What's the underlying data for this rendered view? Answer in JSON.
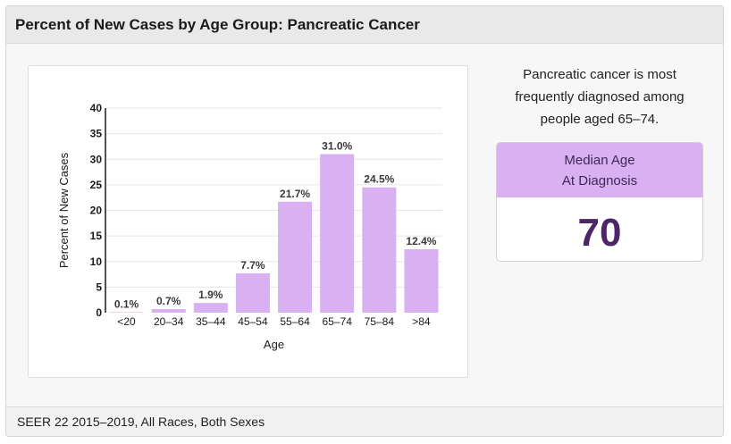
{
  "header": {
    "title": "Percent of New Cases by Age Group: Pancreatic Cancer"
  },
  "summary": {
    "text": "Pancreatic cancer is most frequently diagnosed among people aged 65–74."
  },
  "median": {
    "label_line1": "Median Age",
    "label_line2": "At Diagnosis",
    "value": "70"
  },
  "footer": {
    "text": "SEER 22 2015–2019, All Races, Both Sexes"
  },
  "colors": {
    "bar": "#d9b0f2",
    "median_header": "#d9b0f2",
    "median_value": "#4b2768"
  },
  "chart_data": {
    "type": "bar",
    "categories": [
      "<20",
      "20–34",
      "35–44",
      "45–54",
      "55–64",
      "65–74",
      "75–84",
      ">84"
    ],
    "values": [
      0.1,
      0.7,
      1.9,
      7.7,
      21.7,
      31.0,
      24.5,
      12.4
    ],
    "data_labels": [
      "0.1%",
      "0.7%",
      "1.9%",
      "7.7%",
      "21.7%",
      "31.0%",
      "24.5%",
      "12.4%"
    ],
    "title": "",
    "xlabel": "Age",
    "ylabel": "Percent of New Cases",
    "ylim": [
      0,
      40
    ],
    "yticks": [
      0,
      5,
      10,
      15,
      20,
      25,
      30,
      35,
      40
    ],
    "grid": true
  }
}
